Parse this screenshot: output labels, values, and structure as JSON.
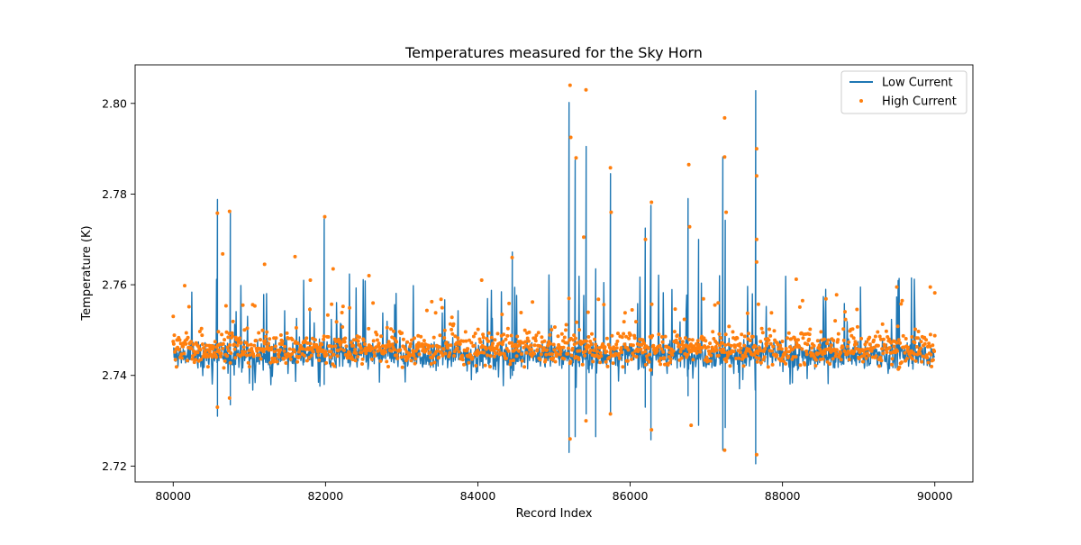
{
  "chart_data": {
    "type": "line",
    "title": "Temperatures measured for the Sky Horn",
    "xlabel": "Record Index",
    "ylabel": "Temperature (K)",
    "xlim": [
      79500,
      90500
    ],
    "ylim": [
      2.7165,
      2.8085
    ],
    "x_ticks": [
      80000,
      82000,
      84000,
      86000,
      88000,
      90000
    ],
    "x_tick_labels": [
      "80000",
      "82000",
      "84000",
      "86000",
      "88000",
      "90000"
    ],
    "y_ticks": [
      2.72,
      2.74,
      2.76,
      2.78,
      2.8
    ],
    "y_tick_labels": [
      "2.72",
      "2.74",
      "2.76",
      "2.78",
      "2.80"
    ],
    "grid": false,
    "legend_position": "top-right",
    "series": [
      {
        "name": "Low Current",
        "style": "line",
        "color": "#1f77b4",
        "baseline": 2.7445,
        "noise": 0.0022,
        "x_range": [
          80000,
          90000
        ],
        "spikes": [
          {
            "x": 80580,
            "top": 2.7788,
            "bottom": 2.731
          },
          {
            "x": 80750,
            "top": 2.7762,
            "bottom": 2.7335
          },
          {
            "x": 81980,
            "top": 2.7745,
            "bottom": 2.738
          },
          {
            "x": 84450,
            "top": 2.7672,
            "bottom": 2.74
          },
          {
            "x": 85200,
            "top": 2.8002,
            "bottom": 2.723
          },
          {
            "x": 85280,
            "top": 2.7875,
            "bottom": 2.7265
          },
          {
            "x": 85420,
            "top": 2.7905,
            "bottom": 2.7315
          },
          {
            "x": 85550,
            "top": 2.7635,
            "bottom": 2.7265
          },
          {
            "x": 85740,
            "top": 2.7845,
            "bottom": 2.7315
          },
          {
            "x": 86200,
            "top": 2.7725,
            "bottom": 2.733
          },
          {
            "x": 86270,
            "top": 2.7775,
            "bottom": 2.7258
          },
          {
            "x": 86760,
            "top": 2.779,
            "bottom": 2.7355
          },
          {
            "x": 86900,
            "top": 2.77,
            "bottom": 2.729
          },
          {
            "x": 87220,
            "top": 2.7882,
            "bottom": 2.7235
          },
          {
            "x": 87250,
            "top": 2.7742,
            "bottom": 2.7285
          },
          {
            "x": 87650,
            "top": 2.8028,
            "bottom": 2.7205
          }
        ]
      },
      {
        "name": "High Current",
        "style": "scatter",
        "color": "#ff7f0e",
        "baseline": 2.746,
        "noise": 0.002,
        "x_range": [
          80000,
          90000
        ],
        "outliers": [
          {
            "x": 80000,
            "y": 2.753
          },
          {
            "x": 80150,
            "y": 2.7598
          },
          {
            "x": 80580,
            "y": 2.7758
          },
          {
            "x": 80650,
            "y": 2.7668
          },
          {
            "x": 80740,
            "y": 2.7762
          },
          {
            "x": 80740,
            "y": 2.735
          },
          {
            "x": 80580,
            "y": 2.733
          },
          {
            "x": 81200,
            "y": 2.7645
          },
          {
            "x": 81600,
            "y": 2.7662
          },
          {
            "x": 81800,
            "y": 2.761
          },
          {
            "x": 81990,
            "y": 2.775
          },
          {
            "x": 82100,
            "y": 2.7635
          },
          {
            "x": 82570,
            "y": 2.762
          },
          {
            "x": 84050,
            "y": 2.761
          },
          {
            "x": 84450,
            "y": 2.766
          },
          {
            "x": 85210,
            "y": 2.804
          },
          {
            "x": 85220,
            "y": 2.7925
          },
          {
            "x": 85290,
            "y": 2.788
          },
          {
            "x": 85420,
            "y": 2.803
          },
          {
            "x": 85390,
            "y": 2.7705
          },
          {
            "x": 85740,
            "y": 2.7858
          },
          {
            "x": 85750,
            "y": 2.776
          },
          {
            "x": 85210,
            "y": 2.726
          },
          {
            "x": 85420,
            "y": 2.73
          },
          {
            "x": 85740,
            "y": 2.7315
          },
          {
            "x": 86280,
            "y": 2.7782
          },
          {
            "x": 86200,
            "y": 2.77
          },
          {
            "x": 86280,
            "y": 2.728
          },
          {
            "x": 86770,
            "y": 2.7865
          },
          {
            "x": 86780,
            "y": 2.7728
          },
          {
            "x": 86800,
            "y": 2.729
          },
          {
            "x": 87240,
            "y": 2.7968
          },
          {
            "x": 87240,
            "y": 2.7882
          },
          {
            "x": 87260,
            "y": 2.776
          },
          {
            "x": 87240,
            "y": 2.7235
          },
          {
            "x": 87660,
            "y": 2.79
          },
          {
            "x": 87660,
            "y": 2.784
          },
          {
            "x": 87660,
            "y": 2.77
          },
          {
            "x": 87660,
            "y": 2.765
          },
          {
            "x": 87660,
            "y": 2.7225
          },
          {
            "x": 88180,
            "y": 2.7612
          },
          {
            "x": 88710,
            "y": 2.7578
          },
          {
            "x": 89500,
            "y": 2.7595
          },
          {
            "x": 89940,
            "y": 2.7595
          },
          {
            "x": 90000,
            "y": 2.7582
          }
        ]
      }
    ]
  }
}
